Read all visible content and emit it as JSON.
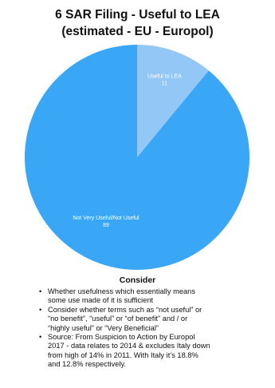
{
  "title_lines": [
    "6 SAR Filing - Useful to LEA",
    "(estimated - EU - Europol)"
  ],
  "chart_data": {
    "type": "pie",
    "title": "6 SAR Filing - Useful to LEA (estimated - EU - Europol)",
    "slices": [
      {
        "label": "Useful to LEA",
        "value": 11,
        "value_label": "11",
        "color": "#93c8f6"
      },
      {
        "label": "Not Very Useful/Not Useful",
        "value": 89,
        "value_label": "89",
        "color": "#39a7f5"
      }
    ],
    "start_angle_deg": 0,
    "direction": "clockwise"
  },
  "consider": {
    "heading": "Consider",
    "bullet_char": "•",
    "items": [
      [
        "Whether usefulness which essentially means",
        "some use made of it is sufficient"
      ],
      [
        "Consider whether terms such as “not useful” or",
        "“no benefit”, “useful” or “of benefit” and / or",
        "“highly useful” or “Very Beneficial”"
      ],
      [
        "Source: From Suspicion to Action by Europol",
        "2017 - data relates to 2014 & excludes Italy down",
        "from high of 14% in 2011. With Italy it’s 18.8%",
        "and 12.8% respectively."
      ]
    ]
  }
}
